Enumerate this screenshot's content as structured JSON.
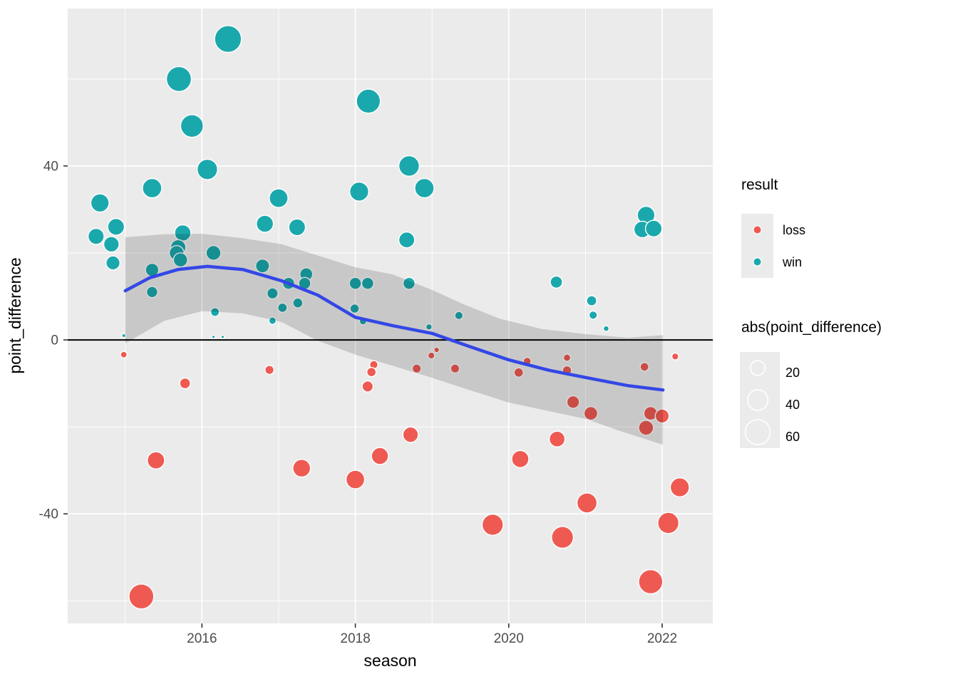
{
  "figure": {
    "background": "#FFFFFF",
    "panel_bg": "#EBEBEB",
    "grid_color": "#FFFFFF",
    "axis_text_color": "#4D4D4D",
    "tick_color": "#333333"
  },
  "axes": {
    "x": {
      "label": "season",
      "ticks": [
        2016,
        2018,
        2020,
        2022
      ],
      "minor_ticks": [
        2015,
        2017,
        2019,
        2021
      ],
      "range": [
        2014.25,
        2022.66
      ]
    },
    "y": {
      "label": "point_difference",
      "ticks": [
        40,
        0,
        -40
      ],
      "minor_ticks": [
        60,
        20,
        -20,
        -60
      ],
      "range": [
        -65.2,
        76.2
      ]
    }
  },
  "legend": {
    "result": {
      "title": "result",
      "items": [
        {
          "label": "loss",
          "color": "#EE5A52"
        },
        {
          "label": "win",
          "color": "#1BA8AD"
        }
      ]
    },
    "size": {
      "title": "abs(point_difference)",
      "items": [
        20,
        40,
        60
      ]
    }
  },
  "chart_data": {
    "type": "scatter",
    "title": "",
    "xlabel": "season",
    "ylabel": "point_difference",
    "xlim": [
      2014.25,
      2022.66
    ],
    "ylim": [
      -65.2,
      76.2
    ],
    "grid": true,
    "legend_position": "right",
    "size_encoding": "abs(point_difference)",
    "hline_y": 0,
    "hline_color": "#000000",
    "series": [
      {
        "name": "win",
        "color": "#1BA8AD",
        "points": [
          [
            2016.34,
            69.2
          ],
          [
            2015.7,
            60.0
          ],
          [
            2015.87,
            49.2
          ],
          [
            2016.07,
            39.2
          ],
          [
            2015.35,
            34.9
          ],
          [
            2014.67,
            31.5
          ],
          [
            2018.17,
            54.9
          ],
          [
            2018.7,
            40.0
          ],
          [
            2018.9,
            34.9
          ],
          [
            2018.05,
            34.1
          ],
          [
            2017.0,
            32.6
          ],
          [
            2017.24,
            25.9
          ],
          [
            2014.62,
            23.8
          ],
          [
            2014.88,
            26.0
          ],
          [
            2014.82,
            22.0
          ],
          [
            2014.84,
            17.7
          ],
          [
            2015.75,
            24.6
          ],
          [
            2016.82,
            26.7
          ],
          [
            2015.69,
            21.3
          ],
          [
            2015.67,
            20.0
          ],
          [
            2015.72,
            18.4
          ],
          [
            2016.15,
            20.0
          ],
          [
            2018.67,
            23.0
          ],
          [
            2015.35,
            16.1
          ],
          [
            2015.35,
            11.0
          ],
          [
            2014.98,
            1.0
          ],
          [
            2016.17,
            6.4
          ],
          [
            2016.15,
            0.7
          ],
          [
            2016.27,
            0.7
          ],
          [
            2016.79,
            17.0
          ],
          [
            2016.92,
            10.7
          ],
          [
            2017.05,
            7.4
          ],
          [
            2016.92,
            4.4
          ],
          [
            2017.36,
            15.1
          ],
          [
            2017.34,
            13.0
          ],
          [
            2017.13,
            13.0
          ],
          [
            2017.25,
            8.5
          ],
          [
            2018.0,
            13.0
          ],
          [
            2018.16,
            13.0
          ],
          [
            2017.99,
            7.2
          ],
          [
            2018.1,
            4.3
          ],
          [
            2018.7,
            13.0
          ],
          [
            2018.96,
            3.0
          ],
          [
            2019.35,
            5.6
          ],
          [
            2020.62,
            13.3
          ],
          [
            2021.08,
            9.0
          ],
          [
            2021.1,
            5.7
          ],
          [
            2021.27,
            2.6
          ],
          [
            2021.79,
            28.7
          ],
          [
            2021.74,
            25.4
          ],
          [
            2021.89,
            25.6
          ]
        ]
      },
      {
        "name": "loss",
        "color": "#EE5A52",
        "points": [
          [
            2014.98,
            -3.4
          ],
          [
            2015.4,
            -27.7
          ],
          [
            2015.21,
            -59.0
          ],
          [
            2015.78,
            -10.0
          ],
          [
            2016.88,
            -6.9
          ],
          [
            2017.3,
            -29.5
          ],
          [
            2018.0,
            -32.1
          ],
          [
            2018.32,
            -26.7
          ],
          [
            2018.72,
            -21.8
          ],
          [
            2018.24,
            -5.7
          ],
          [
            2018.21,
            -7.4
          ],
          [
            2018.16,
            -10.7
          ],
          [
            2018.8,
            -6.6
          ],
          [
            2019.06,
            -2.3
          ],
          [
            2018.99,
            -3.6
          ],
          [
            2019.3,
            -6.6
          ],
          [
            2019.79,
            -42.5
          ],
          [
            2020.13,
            -7.5
          ],
          [
            2020.24,
            -4.9
          ],
          [
            2020.76,
            -4.1
          ],
          [
            2020.76,
            -7.0
          ],
          [
            2020.84,
            -14.3
          ],
          [
            2021.07,
            -16.9
          ],
          [
            2020.63,
            -22.8
          ],
          [
            2020.15,
            -27.4
          ],
          [
            2021.02,
            -37.5
          ],
          [
            2020.7,
            -45.4
          ],
          [
            2021.85,
            -16.9
          ],
          [
            2022.0,
            -17.5
          ],
          [
            2021.79,
            -20.2
          ],
          [
            2022.23,
            -33.9
          ],
          [
            2022.08,
            -42.1
          ],
          [
            2021.85,
            -55.6
          ],
          [
            2022.17,
            -3.8
          ],
          [
            2021.77,
            -6.2
          ]
        ]
      }
    ],
    "smooth": {
      "color": "#3347E6",
      "band_color": "rgba(0,0,0,0.15)",
      "line": [
        [
          2015.0,
          11.3
        ],
        [
          2015.32,
          14.3
        ],
        [
          2015.69,
          16.2
        ],
        [
          2016.07,
          16.9
        ],
        [
          2016.53,
          16.2
        ],
        [
          2017.04,
          13.6
        ],
        [
          2017.51,
          10.3
        ],
        [
          2018.0,
          5.2
        ],
        [
          2018.48,
          3.3
        ],
        [
          2019.0,
          1.5
        ],
        [
          2019.5,
          -1.6
        ],
        [
          2020.0,
          -4.6
        ],
        [
          2020.53,
          -7.0
        ],
        [
          2021.02,
          -8.7
        ],
        [
          2021.55,
          -10.5
        ],
        [
          2022.01,
          -11.5
        ]
      ],
      "band_upper": [
        [
          2015.0,
          23.6
        ],
        [
          2015.51,
          24.3
        ],
        [
          2016.0,
          24.4
        ],
        [
          2016.53,
          23.4
        ],
        [
          2017.04,
          22.0
        ],
        [
          2017.55,
          19.2
        ],
        [
          2018.0,
          16.7
        ],
        [
          2018.48,
          15.1
        ],
        [
          2019.0,
          11.5
        ],
        [
          2019.41,
          8.2
        ],
        [
          2019.88,
          4.9
        ],
        [
          2020.43,
          2.5
        ],
        [
          2021.02,
          1.3
        ],
        [
          2021.55,
          0.5
        ],
        [
          2022.01,
          1.1
        ]
      ],
      "band_lower": [
        [
          2015.0,
          -0.8
        ],
        [
          2015.51,
          4.4
        ],
        [
          2016.0,
          6.6
        ],
        [
          2016.53,
          6.1
        ],
        [
          2017.04,
          4.1
        ],
        [
          2017.51,
          -0.2
        ],
        [
          2018.0,
          -3.4
        ],
        [
          2018.48,
          -5.9
        ],
        [
          2019.0,
          -8.7
        ],
        [
          2019.41,
          -11.1
        ],
        [
          2020.0,
          -14.4
        ],
        [
          2021.01,
          -18.2
        ],
        [
          2021.46,
          -21.0
        ],
        [
          2022.01,
          -24.1
        ]
      ]
    }
  }
}
